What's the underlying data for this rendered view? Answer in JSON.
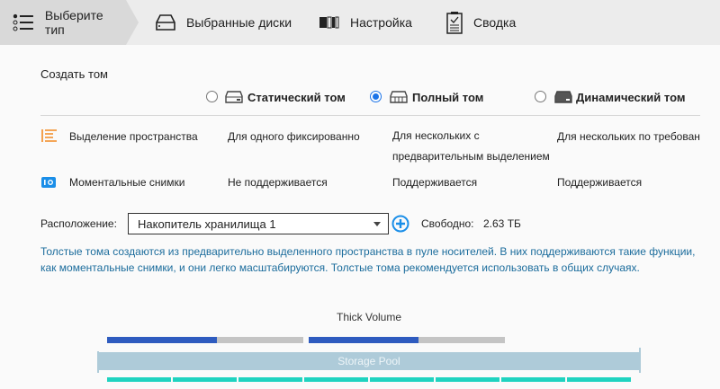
{
  "wizard_steps": [
    {
      "label": "Выберите тип",
      "icon": "list-icon",
      "active": true
    },
    {
      "label": "Выбранные диски",
      "icon": "disk-tray-icon",
      "active": false
    },
    {
      "label": "Настройка",
      "icon": "settings-bars-icon",
      "active": false
    },
    {
      "label": "Сводка",
      "icon": "clipboard-icon",
      "active": false
    }
  ],
  "section_title": "Создать том",
  "volume_types": [
    {
      "label": "Статический том",
      "selected": false
    },
    {
      "label": "Полный том",
      "selected": true
    },
    {
      "label": "Динамический том",
      "selected": false
    }
  ],
  "features": [
    {
      "label": "Выделение пространства",
      "icon": "space-allocation-icon",
      "values": [
        "Для одного фиксированно",
        "Для нескольких с предварительным выделением",
        "Для нескольких по требован"
      ]
    },
    {
      "label": "Моментальные снимки",
      "icon": "snapshot-icon",
      "values": [
        "Не поддерживается",
        "Поддерживается",
        "Поддерживается"
      ]
    }
  ],
  "location": {
    "label": "Расположение:",
    "value": "Накопитель хранилища 1",
    "free_label": "Свободно:",
    "free_value": "2.63 ТБ"
  },
  "description": "Толстые тома создаются из предварительно выделенного пространства в пуле носителей. В них поддерживаются такие функции, как моментальные снимки, и они легко масштабируются. Толстые тома рекомендуется использовать в общих случаях.",
  "diagram": {
    "title": "Thick Volume",
    "pool_label": "Storage Pool",
    "volume_fill": [
      0.56,
      0.56
    ],
    "disk_count": 8
  },
  "colors": {
    "accent": "#1a73e8",
    "description": "#1b6c9c",
    "volume_used": "#2e5bbf",
    "volume_free": "#c4c4c4",
    "pool": "#aecbd9",
    "disk": "#1fd3c0",
    "orange": "#f28a22",
    "snapshot": "#1a8ee8"
  }
}
